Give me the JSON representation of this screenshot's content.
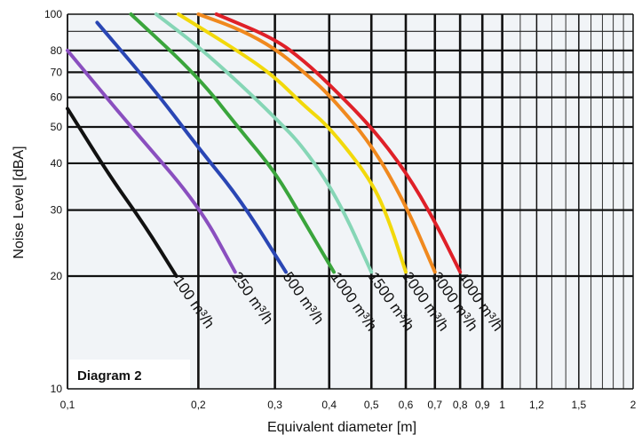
{
  "chart_data": {
    "type": "line",
    "title": "",
    "annotation": "Diagram 2",
    "xlabel": "Equivalent diameter [m]",
    "ylabel": "Noise Level [dBA]",
    "xscale": "log",
    "yscale": "log",
    "xlim": [
      0.1,
      2
    ],
    "ylim": [
      10,
      100
    ],
    "grid": true,
    "x_ticks": [
      0.1,
      0.2,
      0.3,
      0.4,
      0.5,
      0.6,
      0.7,
      0.8,
      0.9,
      1,
      1.2,
      1.5,
      2
    ],
    "x_tick_labels": [
      "0,1",
      "0,2",
      "0,3",
      "0,4",
      "0,5",
      "0,6",
      "0,7",
      "0,8",
      "0,9",
      "1",
      "1,2",
      "1,5",
      "2"
    ],
    "y_ticks": [
      10,
      20,
      30,
      40,
      50,
      60,
      70,
      80,
      100
    ],
    "y_tick_labels": [
      "10",
      "20",
      "30",
      "40",
      "50",
      "60",
      "70",
      "80",
      "100"
    ],
    "series": [
      {
        "name": "100 m³/h",
        "color": "#111111",
        "points": [
          [
            0.1,
            56
          ],
          [
            0.125,
            37
          ],
          [
            0.15,
            27.5
          ],
          [
            0.178,
            20
          ]
        ]
      },
      {
        "name": "250 m³/h",
        "color": "#8a4fbf",
        "points": [
          [
            0.1,
            80
          ],
          [
            0.14,
            50
          ],
          [
            0.2,
            31
          ],
          [
            0.243,
            20.5
          ]
        ]
      },
      {
        "name": "500 m³/h",
        "color": "#2a46b4",
        "points": [
          [
            0.117,
            95
          ],
          [
            0.16,
            62
          ],
          [
            0.2,
            44
          ],
          [
            0.25,
            32
          ],
          [
            0.318,
            20.5
          ]
        ]
      },
      {
        "name": "1000 m³/h",
        "color": "#3aa53c",
        "points": [
          [
            0.14,
            100
          ],
          [
            0.2,
            68
          ],
          [
            0.25,
            49
          ],
          [
            0.3,
            38
          ],
          [
            0.35,
            28
          ],
          [
            0.41,
            20.5
          ]
        ]
      },
      {
        "name": "1500 m³/h",
        "color": "#86d6b6",
        "points": [
          [
            0.16,
            100
          ],
          [
            0.2,
            82
          ],
          [
            0.25,
            65
          ],
          [
            0.3,
            53
          ],
          [
            0.35,
            44
          ],
          [
            0.42,
            32
          ],
          [
            0.5,
            20.5
          ]
        ]
      },
      {
        "name": "2000 m³/h",
        "color": "#f2d90b",
        "points": [
          [
            0.18,
            100
          ],
          [
            0.25,
            79
          ],
          [
            0.3,
            68
          ],
          [
            0.35,
            57
          ],
          [
            0.4,
            50
          ],
          [
            0.5,
            36
          ],
          [
            0.55,
            28
          ],
          [
            0.6,
            20.5
          ]
        ]
      },
      {
        "name": "3000 m³/h",
        "color": "#f0891e",
        "points": [
          [
            0.2,
            100
          ],
          [
            0.25,
            91
          ],
          [
            0.3,
            81
          ],
          [
            0.35,
            70
          ],
          [
            0.4,
            61
          ],
          [
            0.5,
            45
          ],
          [
            0.6,
            31
          ],
          [
            0.7,
            20.5
          ]
        ]
      },
      {
        "name": "4000 m³/h",
        "color": "#df2028",
        "points": [
          [
            0.22,
            100
          ],
          [
            0.3,
            86
          ],
          [
            0.35,
            75
          ],
          [
            0.4,
            65
          ],
          [
            0.5,
            50
          ],
          [
            0.6,
            38
          ],
          [
            0.7,
            28
          ],
          [
            0.8,
            20.5
          ]
        ]
      }
    ]
  }
}
